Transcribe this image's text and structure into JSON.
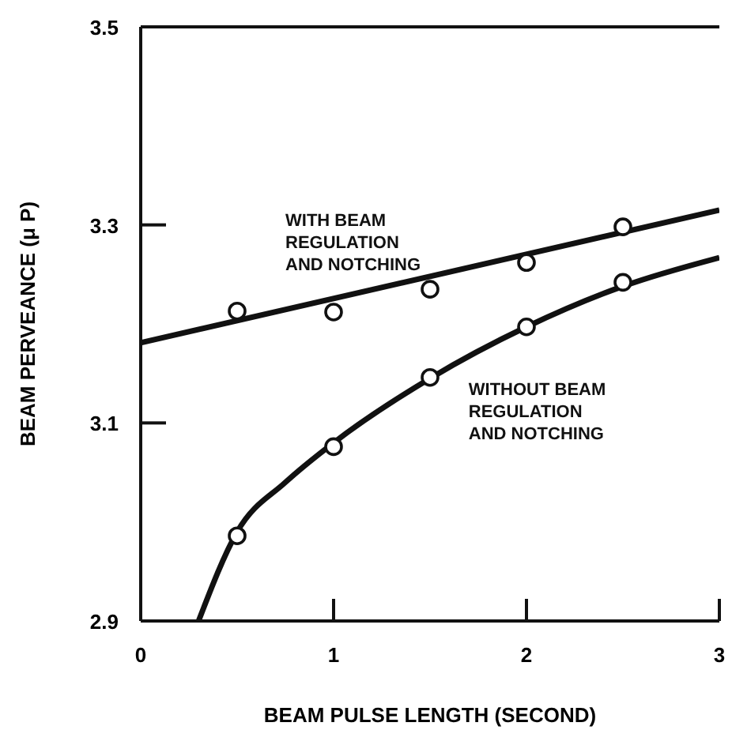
{
  "chart_data": {
    "type": "scatter",
    "xlabel": "BEAM PULSE LENGTH (SECOND)",
    "ylabel": "BEAM PERVEANCE (μ P)",
    "xlim": [
      0,
      3
    ],
    "xticks": [
      0,
      1,
      2,
      3
    ],
    "ylim": [
      2.9,
      3.5
    ],
    "yticks": [
      2.9,
      3.1,
      3.3,
      3.5
    ],
    "marker": "circle",
    "series": [
      {
        "name": "WITH BEAM\nREGULATION\nAND NOTCHING",
        "color": "#111111",
        "x": [
          0.5,
          1,
          1.5,
          2,
          2.5
        ],
        "values": [
          3.213,
          3.212,
          3.235,
          3.262,
          3.298
        ]
      },
      {
        "name": "WITHOUT BEAM\nREGULATION\nAND NOTCHING",
        "color": "#111111",
        "x": [
          0.5,
          1,
          1.5,
          2,
          2.5
        ],
        "values": [
          2.986,
          3.076,
          3.146,
          3.197,
          3.242
        ]
      },
      {
        "type": "line",
        "marker": "none",
        "color": "#111111",
        "x": [
          0,
          3
        ],
        "values": [
          3.181,
          3.315
        ]
      },
      {
        "type": "line",
        "marker": "none",
        "color": "#111111",
        "x": [
          0.3,
          0.5,
          0.75,
          1,
          1.5,
          2,
          2.5,
          3
        ],
        "values": [
          2.9,
          2.99,
          3.04,
          3.08,
          3.145,
          3.197,
          3.238,
          3.267
        ]
      }
    ]
  }
}
